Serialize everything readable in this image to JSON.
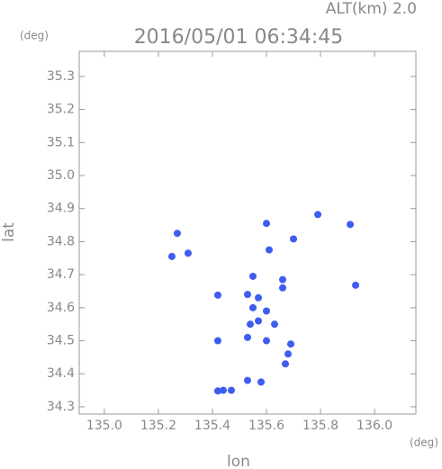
{
  "chart_data": {
    "type": "scatter",
    "title": "2016/05/01 06:34:45",
    "subtitle": "ALT(km) 2.0",
    "x_label": "lon",
    "y_label": "lat",
    "x_unit": "(deg)",
    "y_unit": "(deg)",
    "xlim": [
      134.907,
      136.153
    ],
    "ylim": [
      34.278,
      35.376
    ],
    "xticks": [
      {
        "value": 135.0,
        "label": "135.0"
      },
      135.2,
      135.4,
      135.6,
      135.8,
      {
        "value": 136.0,
        "label": "136.0"
      }
    ],
    "yticks": [
      35.3,
      35.2,
      35.1,
      {
        "value": 35.0,
        "label": "35.0"
      },
      34.9,
      34.8,
      34.7,
      34.6,
      34.5,
      34.4,
      34.3
    ],
    "series": [
      {
        "color": "#3f5cf0",
        "x": [
          135.27,
          135.25,
          135.31,
          135.6,
          135.79,
          135.7,
          135.91,
          135.61,
          135.93,
          135.42,
          135.55,
          135.66,
          135.53,
          135.57,
          135.66,
          135.55,
          135.6,
          135.54,
          135.57,
          135.63,
          135.53,
          135.6,
          135.69,
          135.68,
          135.67,
          135.53,
          135.58,
          135.47,
          135.44,
          135.42,
          135.42
        ],
        "y": [
          34.825,
          34.755,
          34.765,
          34.855,
          34.882,
          34.808,
          34.852,
          34.775,
          34.668,
          34.638,
          34.695,
          34.685,
          34.64,
          34.63,
          34.66,
          34.6,
          34.59,
          34.55,
          34.56,
          34.55,
          34.51,
          34.5,
          34.49,
          34.46,
          34.43,
          34.38,
          34.375,
          34.35,
          34.35,
          34.348,
          34.5
        ]
      }
    ]
  }
}
